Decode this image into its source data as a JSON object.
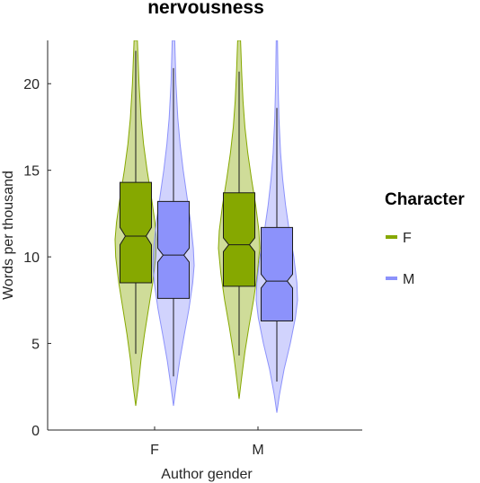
{
  "chart_data": {
    "type": "violin-box",
    "title": "nervousness",
    "xlabel": "Author gender",
    "ylabel": "Words per thousand",
    "categories": [
      "F",
      "M"
    ],
    "ylim": [
      0,
      22.5
    ],
    "yticks": [
      0,
      5,
      10,
      15,
      20
    ],
    "grid": false,
    "legend": {
      "title": "Character",
      "position": "right",
      "entries": [
        {
          "label": "F",
          "color": "#86A800"
        },
        {
          "label": "M",
          "color": "#8C92FB"
        }
      ]
    },
    "series": [
      {
        "name": "F",
        "color": "#86A800",
        "groups": [
          {
            "category": "F",
            "whisker_low": 4.4,
            "q1": 8.5,
            "median": 11.2,
            "q3": 14.3,
            "whisker_high": 21.9,
            "notch_low": 10.7,
            "notch_high": 11.7,
            "violin": [
              [
                1.4,
                0
              ],
              [
                2.5,
                0.12
              ],
              [
                4,
                0.25
              ],
              [
                5.5,
                0.42
              ],
              [
                7,
                0.62
              ],
              [
                8.5,
                0.82
              ],
              [
                10,
                0.97
              ],
              [
                11,
                1.0
              ],
              [
                12,
                0.93
              ],
              [
                13.5,
                0.75
              ],
              [
                15,
                0.55
              ],
              [
                16.5,
                0.38
              ],
              [
                18,
                0.26
              ],
              [
                20,
                0.16
              ],
              [
                22.5,
                0.08
              ]
            ]
          },
          {
            "category": "M",
            "whisker_low": 4.3,
            "q1": 8.3,
            "median": 10.7,
            "q3": 13.7,
            "whisker_high": 20.7,
            "notch_low": 10.3,
            "notch_high": 11.1,
            "violin": [
              [
                1.8,
                0
              ],
              [
                3,
                0.12
              ],
              [
                4.5,
                0.28
              ],
              [
                6,
                0.48
              ],
              [
                7.5,
                0.7
              ],
              [
                9,
                0.88
              ],
              [
                10.5,
                1.0
              ],
              [
                11.5,
                0.96
              ],
              [
                13,
                0.8
              ],
              [
                14.5,
                0.6
              ],
              [
                16,
                0.42
              ],
              [
                17.5,
                0.28
              ],
              [
                19,
                0.19
              ],
              [
                20.5,
                0.13
              ],
              [
                22.5,
                0.07
              ]
            ]
          }
        ]
      },
      {
        "name": "M",
        "color": "#8C92FB",
        "groups": [
          {
            "category": "F",
            "whisker_low": 3.1,
            "q1": 7.6,
            "median": 10.1,
            "q3": 13.2,
            "whisker_high": 20.9,
            "notch_low": 9.7,
            "notch_high": 10.5,
            "violin": [
              [
                1.4,
                0
              ],
              [
                2.5,
                0.12
              ],
              [
                4,
                0.3
              ],
              [
                5.5,
                0.52
              ],
              [
                7,
                0.75
              ],
              [
                8.5,
                0.93
              ],
              [
                9.5,
                1.0
              ],
              [
                10.5,
                0.96
              ],
              [
                12,
                0.83
              ],
              [
                13.5,
                0.65
              ],
              [
                15,
                0.47
              ],
              [
                16.5,
                0.32
              ],
              [
                18,
                0.21
              ],
              [
                20,
                0.12
              ],
              [
                22.5,
                0.06
              ]
            ]
          },
          {
            "category": "M",
            "whisker_low": 2.8,
            "q1": 6.3,
            "median": 8.6,
            "q3": 11.7,
            "whisker_high": 18.6,
            "notch_low": 8.2,
            "notch_high": 9.0,
            "violin": [
              [
                1.0,
                0
              ],
              [
                2,
                0.12
              ],
              [
                3.5,
                0.35
              ],
              [
                5,
                0.65
              ],
              [
                6.5,
                0.9
              ],
              [
                7.5,
                1.0
              ],
              [
                8.5,
                0.97
              ],
              [
                10,
                0.82
              ],
              [
                11.5,
                0.6
              ],
              [
                13,
                0.42
              ],
              [
                14.5,
                0.28
              ],
              [
                16,
                0.18
              ],
              [
                18,
                0.1
              ],
              [
                20,
                0.06
              ],
              [
                22.5,
                0.03
              ]
            ]
          }
        ]
      }
    ]
  }
}
